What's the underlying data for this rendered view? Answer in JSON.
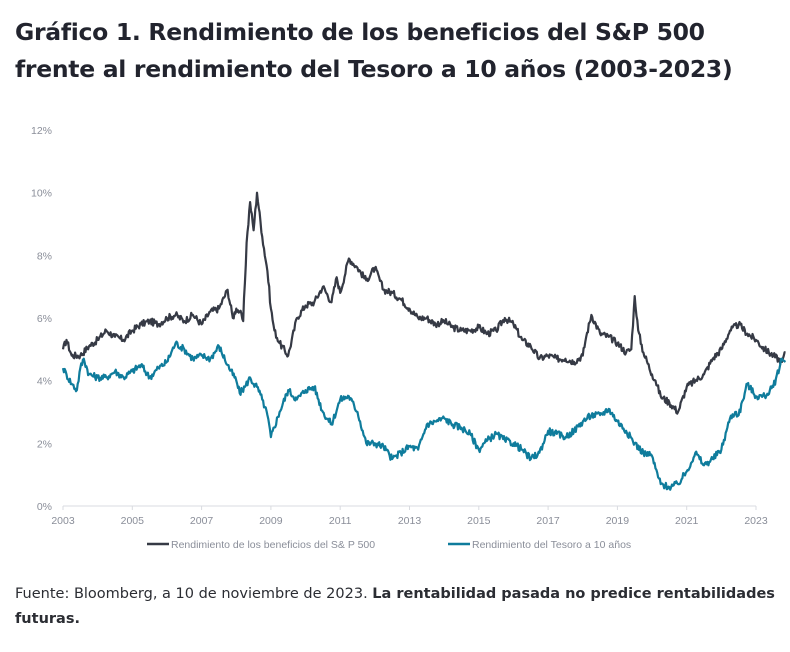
{
  "title": "Gráfico 1. Rendimiento de los beneficios del S&P 500 frente al rendimiento del Tesoro a 10 años (2003-2023)",
  "footer": {
    "source": "Fuente: Bloomberg, a 10 de noviembre de 2023. ",
    "disclaimer": "La rentabilidad pasada no predice rentabilidades futuras."
  },
  "colors": {
    "earnings_yield": "#363a45",
    "treasury_yield": "#0f7c9c",
    "axis": "#d9dbe0",
    "tick_text": "#8a8e99"
  },
  "chart_data": {
    "type": "line",
    "title": "",
    "xlabel": "",
    "ylabel": "",
    "xlim": [
      2003,
      2023
    ],
    "ylim": [
      0,
      12
    ],
    "y_unit": "%",
    "grid": false,
    "legend_position": "bottom",
    "x_ticks": [
      "2003",
      "2005",
      "2007",
      "2009",
      "2011",
      "2013",
      "2015",
      "2017",
      "2019",
      "2021",
      "2023"
    ],
    "y_ticks": [
      "0%",
      "2%",
      "4%",
      "6%",
      "8%",
      "10%",
      "12%"
    ],
    "series": [
      {
        "name": "Rendimiento de los beneficios del S& P 500",
        "x": [
          2003.0,
          2003.1,
          2003.25,
          2003.5,
          2003.75,
          2004.0,
          2004.25,
          2004.5,
          2004.75,
          2005.0,
          2005.25,
          2005.5,
          2005.75,
          2006.0,
          2006.25,
          2006.5,
          2006.75,
          2007.0,
          2007.25,
          2007.5,
          2007.75,
          2007.9,
          2008.0,
          2008.1,
          2008.2,
          2008.3,
          2008.4,
          2008.5,
          2008.6,
          2008.75,
          2008.9,
          2009.0,
          2009.1,
          2009.25,
          2009.5,
          2009.75,
          2010.0,
          2010.25,
          2010.5,
          2010.75,
          2010.9,
          2011.0,
          2011.25,
          2011.5,
          2011.75,
          2012.0,
          2012.25,
          2012.5,
          2012.75,
          2013.0,
          2013.25,
          2013.5,
          2013.75,
          2014.0,
          2014.25,
          2014.5,
          2014.75,
          2015.0,
          2015.25,
          2015.5,
          2015.75,
          2016.0,
          2016.25,
          2016.5,
          2016.75,
          2017.0,
          2017.25,
          2017.5,
          2017.75,
          2018.0,
          2018.1,
          2018.25,
          2018.5,
          2018.75,
          2019.0,
          2019.25,
          2019.4,
          2019.5,
          2019.6,
          2019.75,
          2020.0,
          2020.1,
          2020.25,
          2020.5,
          2020.75,
          2021.0,
          2021.25,
          2021.5,
          2021.75,
          2022.0,
          2022.25,
          2022.5,
          2022.75,
          2023.0,
          2023.25,
          2023.5,
          2023.75,
          2023.85
        ],
        "values": [
          5.0,
          5.3,
          4.8,
          4.8,
          5.1,
          5.3,
          5.6,
          5.4,
          5.3,
          5.6,
          5.8,
          5.9,
          5.8,
          6.0,
          6.1,
          5.9,
          6.1,
          5.8,
          6.2,
          6.3,
          6.9,
          6.0,
          6.3,
          6.2,
          5.9,
          8.4,
          9.7,
          8.8,
          10.0,
          8.6,
          7.5,
          6.3,
          5.6,
          5.2,
          4.8,
          6.0,
          6.4,
          6.5,
          7.0,
          6.5,
          7.3,
          6.8,
          7.9,
          7.6,
          7.2,
          7.6,
          6.9,
          6.8,
          6.6,
          6.3,
          6.0,
          6.0,
          5.8,
          5.9,
          5.7,
          5.6,
          5.6,
          5.7,
          5.5,
          5.6,
          6.0,
          5.8,
          5.3,
          5.1,
          4.7,
          4.8,
          4.7,
          4.7,
          4.6,
          4.8,
          5.4,
          6.1,
          5.5,
          5.4,
          5.2,
          4.9,
          5.0,
          6.7,
          5.6,
          4.9,
          4.2,
          4.0,
          3.5,
          3.3,
          3.0,
          3.8,
          4.0,
          4.2,
          4.7,
          5.0,
          5.6,
          5.8,
          5.5,
          5.3,
          5.0,
          4.8,
          4.6,
          4.9
        ]
      },
      {
        "name": "Rendimiento del Tesoro a 10 años",
        "x": [
          2003.0,
          2003.1,
          2003.25,
          2003.4,
          2003.5,
          2003.6,
          2003.75,
          2004.0,
          2004.25,
          2004.5,
          2004.75,
          2005.0,
          2005.25,
          2005.5,
          2005.75,
          2006.0,
          2006.25,
          2006.5,
          2006.75,
          2007.0,
          2007.25,
          2007.5,
          2007.75,
          2008.0,
          2008.1,
          2008.25,
          2008.4,
          2008.5,
          2008.6,
          2008.75,
          2008.9,
          2009.0,
          2009.25,
          2009.5,
          2009.75,
          2010.0,
          2010.25,
          2010.5,
          2010.75,
          2011.0,
          2011.25,
          2011.5,
          2011.75,
          2012.0,
          2012.25,
          2012.5,
          2012.75,
          2013.0,
          2013.25,
          2013.5,
          2013.75,
          2014.0,
          2014.25,
          2014.5,
          2014.75,
          2015.0,
          2015.25,
          2015.5,
          2015.75,
          2016.0,
          2016.25,
          2016.5,
          2016.75,
          2017.0,
          2017.25,
          2017.5,
          2017.75,
          2018.0,
          2018.25,
          2018.5,
          2018.75,
          2019.0,
          2019.25,
          2019.5,
          2019.75,
          2020.0,
          2020.1,
          2020.25,
          2020.5,
          2020.75,
          2021.0,
          2021.25,
          2021.5,
          2021.75,
          2022.0,
          2022.25,
          2022.4,
          2022.5,
          2022.75,
          2023.0,
          2023.25,
          2023.5,
          2023.75,
          2023.85
        ],
        "values": [
          4.4,
          4.2,
          3.9,
          3.7,
          4.4,
          4.7,
          4.2,
          4.1,
          4.1,
          4.3,
          4.1,
          4.3,
          4.5,
          4.1,
          4.4,
          4.6,
          5.2,
          5.0,
          4.7,
          4.8,
          4.7,
          5.1,
          4.5,
          4.0,
          3.6,
          3.8,
          4.1,
          3.9,
          3.8,
          3.4,
          2.9,
          2.2,
          3.0,
          3.7,
          3.4,
          3.7,
          3.8,
          3.0,
          2.6,
          3.4,
          3.5,
          3.0,
          2.0,
          2.0,
          1.9,
          1.5,
          1.7,
          1.9,
          1.8,
          2.6,
          2.7,
          2.8,
          2.6,
          2.5,
          2.3,
          1.8,
          2.1,
          2.3,
          2.1,
          2.0,
          1.8,
          1.5,
          1.7,
          2.4,
          2.3,
          2.2,
          2.4,
          2.7,
          2.9,
          2.9,
          3.1,
          2.7,
          2.4,
          2.0,
          1.7,
          1.6,
          1.2,
          0.7,
          0.6,
          0.7,
          1.1,
          1.7,
          1.3,
          1.5,
          1.8,
          2.8,
          3.0,
          2.9,
          3.9,
          3.5,
          3.5,
          3.8,
          4.7,
          4.6
        ]
      }
    ]
  }
}
